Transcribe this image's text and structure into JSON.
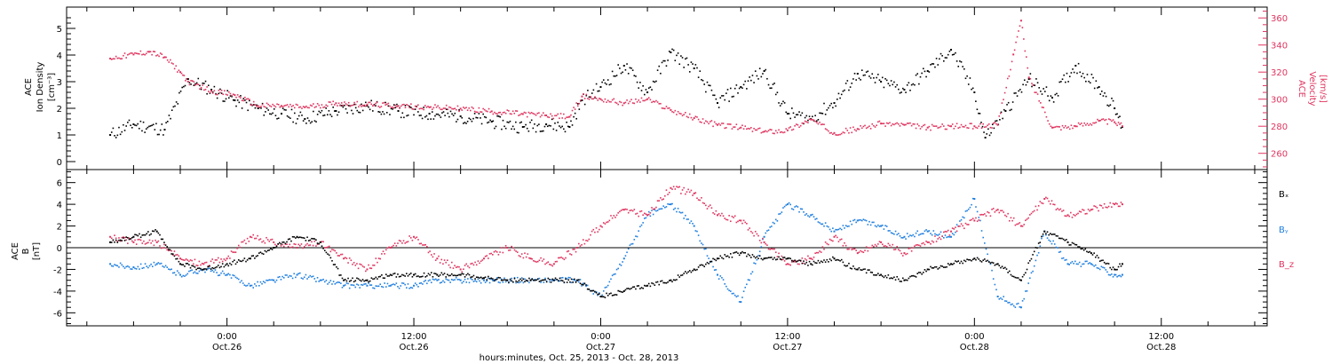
{
  "colors": {
    "black": "#000000",
    "pink": "#e0355f",
    "blue": "#1f7fe0"
  },
  "chart_data": [
    {
      "type": "scatter",
      "ylabel_lines": [
        "ACE",
        "Ion Density",
        "[cm⁻³]"
      ],
      "y2label_lines": [
        "ACE",
        "Velocity",
        "[km/s]"
      ],
      "yticks": [
        "0",
        "1",
        "2",
        "3",
        "4",
        "5"
      ],
      "ylim": [
        -0.3,
        5.8
      ],
      "y2ticks": [
        "260",
        "280",
        "300",
        "320",
        "340",
        "360"
      ],
      "y2lim": [
        248,
        368
      ],
      "x_hours": [
        0,
        12,
        24,
        36,
        48,
        60
      ],
      "series": [
        {
          "name": "Ion Density",
          "color": "#000000",
          "axis": "left",
          "x": [
            -7.5,
            -6,
            -4,
            -2.5,
            -1,
            0.5,
            2,
            3.5,
            5,
            7,
            9,
            11,
            13,
            15,
            17,
            19,
            20.5,
            22,
            22.8,
            24,
            25.5,
            27,
            28.5,
            30,
            31.5,
            33,
            34.5,
            36,
            37.5,
            39,
            40.5,
            42,
            43.5,
            45,
            46.5,
            48,
            48.7,
            50,
            51.5,
            53,
            54.5,
            56,
            57,
            57.5
          ],
          "y": [
            1.0,
            1.4,
            1.2,
            3.1,
            2.7,
            2.3,
            2.0,
            1.8,
            1.6,
            1.9,
            2.1,
            1.9,
            1.8,
            1.7,
            1.5,
            1.3,
            1.4,
            1.3,
            2.3,
            2.8,
            3.6,
            2.6,
            4.1,
            3.5,
            2.2,
            2.8,
            3.4,
            1.8,
            1.6,
            2.2,
            3.3,
            3.0,
            2.7,
            3.4,
            4.2,
            2.6,
            0.9,
            1.9,
            3.1,
            2.4,
            3.6,
            2.8,
            2.0,
            1.3
          ]
        },
        {
          "name": "Velocity",
          "color": "#e0355f",
          "axis": "right",
          "x": [
            -7.5,
            -6,
            -5,
            -4,
            -3,
            -2.5,
            -1,
            0.5,
            2,
            3.5,
            5,
            7,
            9,
            11,
            13,
            15,
            17,
            19,
            20.5,
            22,
            22.8,
            24,
            25.5,
            27,
            28.5,
            30,
            31.5,
            33,
            34.5,
            36,
            37.5,
            39,
            40.5,
            42,
            43.5,
            45,
            46.5,
            48,
            49.5,
            50.5,
            51,
            51.5,
            53,
            54.5,
            56,
            57,
            57.5
          ],
          "y": [
            330,
            333,
            335,
            331,
            320,
            313,
            306,
            303,
            295,
            295,
            294,
            297,
            296,
            295,
            294,
            293,
            291,
            289,
            288,
            287,
            302,
            300,
            297,
            300,
            292,
            286,
            281,
            279,
            276,
            277,
            285,
            275,
            278,
            282,
            281,
            279,
            280,
            280,
            281,
            333,
            358,
            316,
            279,
            280,
            284,
            283,
            280
          ]
        }
      ]
    },
    {
      "type": "scatter",
      "ylabel_lines": [
        "ACE",
        "B",
        "[nT]"
      ],
      "yticks": [
        "-6",
        "-4",
        "-2",
        "0",
        "2",
        "4",
        "6"
      ],
      "ylim": [
        -7.2,
        7.2
      ],
      "x_hours": [
        0,
        12,
        24,
        36,
        48,
        60
      ],
      "series": [
        {
          "name": "Bₓ",
          "color": "#000000",
          "x": [
            -7.5,
            -6,
            -4.5,
            -3,
            -1.5,
            0,
            1.5,
            3,
            4.5,
            6,
            7.5,
            9,
            10.5,
            12,
            13.5,
            15,
            16.5,
            18,
            19.5,
            21,
            22.5,
            24,
            25.5,
            27,
            28.5,
            30,
            31.5,
            33,
            34.5,
            36,
            37.5,
            39,
            40.5,
            42,
            43.5,
            45,
            46.5,
            48,
            49.5,
            51,
            52.5,
            54,
            55.5,
            57,
            57.5
          ],
          "y": [
            0.5,
            1.0,
            1.5,
            -1.5,
            -2.0,
            -1.5,
            -1.0,
            0.0,
            1.0,
            0.5,
            -3.0,
            -3.0,
            -2.5,
            -2.5,
            -2.5,
            -2.5,
            -2.8,
            -3.0,
            -3.0,
            -3.0,
            -3.0,
            -4.5,
            -4.0,
            -3.5,
            -3.0,
            -2.0,
            -1.0,
            -0.5,
            -1.0,
            -1.0,
            -1.5,
            -1.0,
            -2.0,
            -2.5,
            -3.0,
            -2.0,
            -1.5,
            -1.0,
            -1.5,
            -3.0,
            1.5,
            0.5,
            -0.5,
            -2.0,
            -1.5
          ]
        },
        {
          "name": "Bᵧ",
          "color": "#1f7fe0",
          "x": [
            -7.5,
            -6,
            -4.5,
            -3,
            -1.5,
            0,
            1.5,
            3,
            4.5,
            6,
            7.5,
            9,
            10.5,
            12,
            13.5,
            15,
            16.5,
            18,
            19.5,
            21,
            22.5,
            24,
            25.5,
            27,
            28.5,
            30,
            31.5,
            33,
            34.5,
            36,
            37.5,
            39,
            40.5,
            42,
            43.5,
            45,
            46.5,
            48,
            49.5,
            51,
            52.5,
            54,
            55.5,
            57,
            57.5
          ],
          "y": [
            -1.5,
            -1.8,
            -1.5,
            -2.5,
            -2.0,
            -2.5,
            -3.5,
            -3.0,
            -2.5,
            -3.0,
            -3.5,
            -3.5,
            -3.5,
            -3.5,
            -3.0,
            -3.0,
            -3.0,
            -3.0,
            -3.0,
            -3.0,
            -3.0,
            -4.5,
            -1.0,
            3.0,
            4.0,
            2.0,
            -2.5,
            -5.0,
            1.0,
            4.0,
            3.0,
            1.5,
            2.5,
            2.0,
            1.0,
            1.5,
            1.0,
            4.5,
            -4.5,
            -5.5,
            1.5,
            -1.5,
            -1.5,
            -2.5,
            -2.5
          ]
        },
        {
          "name": "B_z",
          "color": "#e0355f",
          "x": [
            -7.5,
            -6,
            -4.5,
            -3,
            -1.5,
            0,
            1.5,
            3,
            4.5,
            6,
            7.5,
            9,
            10.5,
            12,
            13.5,
            15,
            16.5,
            18,
            19.5,
            21,
            22.5,
            24,
            25.5,
            27,
            28.5,
            30,
            31.5,
            33,
            34.5,
            36,
            37.5,
            39,
            40.5,
            42,
            43.5,
            45,
            46.5,
            48,
            49.5,
            51,
            52.5,
            54,
            55.5,
            57,
            57.5
          ],
          "y": [
            1.0,
            0.5,
            0.5,
            -1.0,
            -1.5,
            -1.0,
            1.0,
            0.5,
            0.0,
            0.5,
            -1.0,
            -2.0,
            0.0,
            1.0,
            -1.0,
            -2.0,
            -1.0,
            0.0,
            -1.0,
            -1.5,
            0.0,
            2.0,
            3.5,
            3.0,
            5.5,
            5.0,
            3.0,
            2.5,
            0.5,
            -1.5,
            -1.0,
            1.0,
            -0.5,
            0.5,
            -0.5,
            0.5,
            1.5,
            2.5,
            3.5,
            2.0,
            4.5,
            3.0,
            3.5,
            4.0,
            4.0
          ]
        }
      ]
    }
  ],
  "xaxis": {
    "tick_labels": [
      {
        "hour": 0,
        "time": "0:00",
        "day": "Oct.26"
      },
      {
        "hour": 12,
        "time": "12:00",
        "day": "Oct.26"
      },
      {
        "hour": 24,
        "time": "0:00",
        "day": "Oct.27"
      },
      {
        "hour": 36,
        "time": "12:00",
        "day": "Oct.27"
      },
      {
        "hour": 48,
        "time": "0:00",
        "day": "Oct.28"
      },
      {
        "hour": 60,
        "time": "12:00",
        "day": "Oct.28"
      }
    ],
    "range_hours": [
      -10.3,
      66.8
    ],
    "title": "hours:minutes, Oct. 25, 2013 - Oct. 28, 2013"
  },
  "legend": [
    {
      "label": "Bₓ",
      "color": "#000000"
    },
    {
      "label": "Bᵧ",
      "color": "#1f7fe0"
    },
    {
      "label": "B_z",
      "color": "#e0355f"
    }
  ]
}
